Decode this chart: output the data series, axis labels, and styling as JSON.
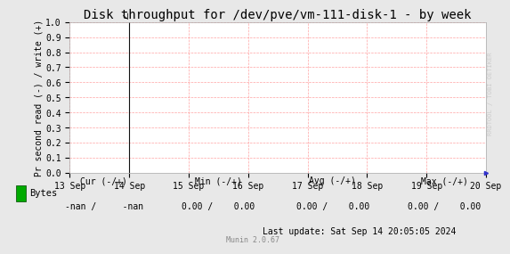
{
  "title": "Disk throughput for /dev/pve/vm-111-disk-1 - by week",
  "ylabel": "Pr second read (-) / write (+)",
  "background_color": "#e8e8e8",
  "plot_bg_color": "#ffffff",
  "grid_color": "#ff9999",
  "ylim": [
    0.0,
    1.0
  ],
  "yticks": [
    0.0,
    0.1,
    0.2,
    0.3,
    0.4,
    0.5,
    0.6,
    0.7,
    0.8,
    0.9,
    1.0
  ],
  "xtick_labels": [
    "13 Sep",
    "14 Sep",
    "15 Sep",
    "16 Sep",
    "17 Sep",
    "18 Sep",
    "19 Sep",
    "20 Sep"
  ],
  "vline_x": 1,
  "legend_color": "#00aa00",
  "legend_label": "Bytes",
  "cur_label": "Cur (-/+)",
  "cur_value": "-nan /     -nan",
  "min_label": "Min (-/+)",
  "min_value": "0.00 /    0.00",
  "avg_label": "Avg (-/+)",
  "avg_value": "0.00 /    0.00",
  "max_label": "Max (-/+)",
  "max_value": "0.00 /    0.00",
  "last_update": "Last update: Sat Sep 14 20:05:05 2024",
  "munin_label": "Munin 2.0.67",
  "rrdtool_label": "RRDTOOL / TOBI OETIKER",
  "title_fontsize": 10,
  "ylabel_fontsize": 7,
  "tick_fontsize": 7,
  "legend_fontsize": 7.5,
  "stats_fontsize": 7,
  "munin_fontsize": 6,
  "rrdtool_fontsize": 5
}
